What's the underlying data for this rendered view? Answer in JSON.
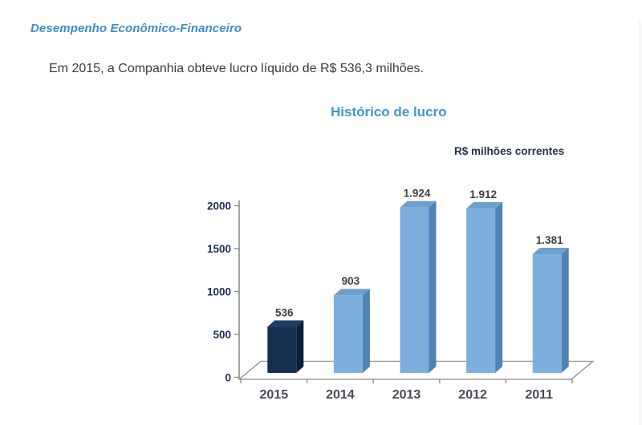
{
  "page": {
    "heading": "Desempenho Econômico-Financeiro",
    "paragraph": "Em 2015, a Companhia obteve lucro líquido de R$ 536,3 milhões."
  },
  "chart": {
    "title": "Histórico de lucro",
    "units_label": "R$ milhões correntes"
  },
  "chart_data": {
    "type": "bar",
    "title": "Histórico de lucro",
    "subtitle": "R$ milhões correntes",
    "categories": [
      "2015",
      "2014",
      "2013",
      "2012",
      "2011"
    ],
    "values": [
      536,
      903,
      1924,
      1912,
      1381
    ],
    "value_labels": [
      "536",
      "903",
      "1.924",
      "1.912",
      "1.381"
    ],
    "y_ticks": [
      0,
      500,
      1000,
      1500,
      2000
    ],
    "ylim": [
      0,
      2000
    ],
    "xlabel": "",
    "ylabel": "",
    "grid": false,
    "legend": "none",
    "style_3d": true,
    "highlight_index": 0,
    "colors": {
      "bar_front": "#7CAFDC",
      "bar_top": "#6EA0CE",
      "bar_side": "#5282B3",
      "highlight_front": "#162F51",
      "highlight_top": "#1D3D63",
      "highlight_side": "#0C1F3A",
      "axis_line": "#8C8C8C",
      "y_tick_label": "#1C3050",
      "category_label": "#4A4A57",
      "value_label": "#3F3F3F"
    }
  }
}
